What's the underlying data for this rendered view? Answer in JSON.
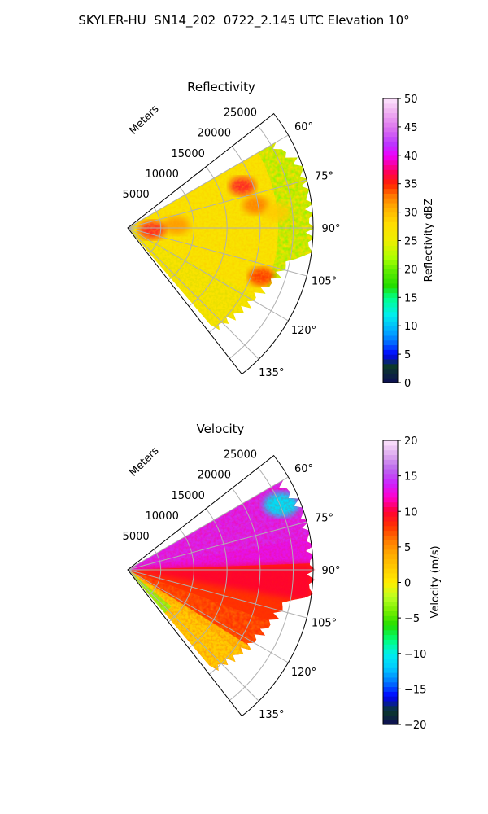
{
  "figure": {
    "title": "SKYLER-HU  SN14_202  0722_2.145 UTC Elevation 10°"
  },
  "chart_data": [
    {
      "type": "heatmap",
      "title": "Reflectivity",
      "radial_label": "Meters",
      "range_ticks": [
        "5000",
        "10000",
        "15000",
        "20000",
        "25000"
      ],
      "angle_ticks": [
        "60°",
        "75°",
        "90°",
        "105°",
        "120°",
        "135°"
      ],
      "angle_range_deg": [
        52,
        142
      ],
      "range_max_m": 28000,
      "colorbar": {
        "label": "Reflectivity dBZ",
        "ticks": [
          "0",
          "5",
          "10",
          "15",
          "20",
          "25",
          "30",
          "35",
          "40",
          "45",
          "50"
        ],
        "min": 0,
        "max": 50,
        "stops": [
          [
            0,
            "#0d0d55"
          ],
          [
            3,
            "#0b3a2a"
          ],
          [
            5,
            "#0000ff"
          ],
          [
            7,
            "#0066ff"
          ],
          [
            9,
            "#00aaff"
          ],
          [
            12,
            "#00eeee"
          ],
          [
            15,
            "#00ff88"
          ],
          [
            17,
            "#22dd00"
          ],
          [
            20,
            "#66ee00"
          ],
          [
            22,
            "#aaff00"
          ],
          [
            25,
            "#eeee00"
          ],
          [
            28,
            "#ffdd00"
          ],
          [
            31,
            "#ffaa00"
          ],
          [
            33,
            "#ff7700"
          ],
          [
            35,
            "#ff2200"
          ],
          [
            37,
            "#ff0055"
          ],
          [
            40,
            "#ee00ff"
          ],
          [
            42,
            "#bb33ff"
          ],
          [
            45,
            "#dd77ee"
          ],
          [
            48,
            "#f2b8f2"
          ],
          [
            50,
            "#fde6fd"
          ]
        ]
      },
      "field_description_colors": {
        "dominant": "#ffdd22",
        "outer_edge": "#88ee22",
        "cores": "#ff3300"
      }
    },
    {
      "type": "heatmap",
      "title": "Velocity",
      "radial_label": "Meters",
      "range_ticks": [
        "5000",
        "10000",
        "15000",
        "20000",
        "25000"
      ],
      "angle_ticks": [
        "60°",
        "75°",
        "90°",
        "105°",
        "120°",
        "135°"
      ],
      "angle_range_deg": [
        52,
        142
      ],
      "range_max_m": 28000,
      "colorbar": {
        "label": "Velocity (m/s)",
        "ticks": [
          "−20",
          "−15",
          "−10",
          "−5",
          "0",
          "5",
          "10",
          "15",
          "20"
        ],
        "min": -20,
        "max": 20,
        "stops": [
          [
            -20,
            "#0d0d55"
          ],
          [
            -18,
            "#0b3a2a"
          ],
          [
            -16,
            "#0000ff"
          ],
          [
            -14,
            "#0077ff"
          ],
          [
            -12,
            "#00ccff"
          ],
          [
            -10,
            "#00eeee"
          ],
          [
            -8,
            "#00ff77"
          ],
          [
            -6,
            "#22dd00"
          ],
          [
            -4,
            "#77ee00"
          ],
          [
            -2,
            "#bbff22"
          ],
          [
            0,
            "#ffee00"
          ],
          [
            2,
            "#ffcc00"
          ],
          [
            4,
            "#ffaa00"
          ],
          [
            6,
            "#ff7700"
          ],
          [
            8,
            "#ff3300"
          ],
          [
            10,
            "#ff0033"
          ],
          [
            12,
            "#ff00cc"
          ],
          [
            14,
            "#cc22ff"
          ],
          [
            16,
            "#bb66ee"
          ],
          [
            18,
            "#ddaaee"
          ],
          [
            20,
            "#fde6fd"
          ]
        ]
      }
    }
  ]
}
